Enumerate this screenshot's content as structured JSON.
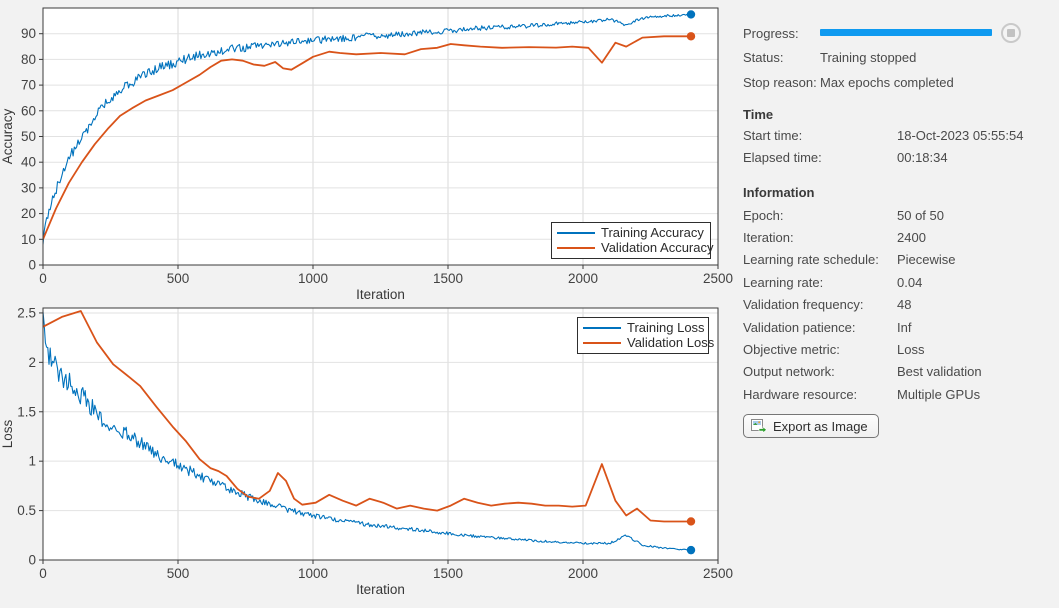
{
  "panel": {
    "progress": {
      "label": "Progress:",
      "percent": 100,
      "bar_color": "#0f9af0"
    },
    "status": {
      "label": "Status:",
      "value": "Training stopped"
    },
    "stop_reason": {
      "label": "Stop reason:",
      "value": "Max epochs completed"
    },
    "time": {
      "title": "Time",
      "rows": [
        {
          "label": "Start time:",
          "value": "18-Oct-2023 05:55:54"
        },
        {
          "label": "Elapsed time:",
          "value": "00:18:34"
        }
      ]
    },
    "information": {
      "title": "Information",
      "rows": [
        {
          "label": "Epoch:",
          "value": "50 of 50"
        },
        {
          "label": "Iteration:",
          "value": "2400"
        },
        {
          "label": "Learning rate schedule:",
          "value": "Piecewise"
        },
        {
          "label": "Learning rate:",
          "value": "0.04"
        },
        {
          "label": "Validation frequency:",
          "value": "48"
        },
        {
          "label": "Validation patience:",
          "value": "Inf"
        },
        {
          "label": "Objective metric:",
          "value": "Loss"
        },
        {
          "label": "Output network:",
          "value": "Best validation"
        },
        {
          "label": "Hardware resource:",
          "value": "Multiple GPUs"
        }
      ]
    },
    "export_button_label": "Export as Image"
  },
  "chart_data": [
    {
      "type": "line",
      "title": "",
      "xlabel": "Iteration",
      "ylabel": "Accuracy",
      "xlim": [
        0,
        2500
      ],
      "ylim": [
        0,
        100
      ],
      "xticks": [
        0,
        500,
        1000,
        1500,
        2000,
        2500
      ],
      "yticks": [
        0,
        10,
        20,
        30,
        40,
        50,
        60,
        70,
        80,
        90
      ],
      "grid": true,
      "legend_position": "bottom-right",
      "series": [
        {
          "name": "Training Accuracy",
          "color": "#0072BD",
          "width": 1.1,
          "noise": 1.6,
          "noise_mode": "fade",
          "end_marker": true,
          "points": [
            [
              0,
              10
            ],
            [
              20,
              21
            ],
            [
              50,
              30
            ],
            [
              90,
              40
            ],
            [
              130,
              48
            ],
            [
              170,
              54
            ],
            [
              210,
              60
            ],
            [
              250,
              65
            ],
            [
              285,
              68
            ],
            [
              330,
              71
            ],
            [
              380,
              74
            ],
            [
              430,
              77
            ],
            [
              500,
              79
            ],
            [
              550,
              81
            ],
            [
              600,
              82
            ],
            [
              650,
              83
            ],
            [
              700,
              84
            ],
            [
              750,
              84.5
            ],
            [
              800,
              85.5
            ],
            [
              850,
              86
            ],
            [
              900,
              86.5
            ],
            [
              950,
              87
            ],
            [
              1000,
              87.5
            ],
            [
              1100,
              88
            ],
            [
              1200,
              89
            ],
            [
              1300,
              89.5
            ],
            [
              1400,
              90.5
            ],
            [
              1500,
              91
            ],
            [
              1600,
              92
            ],
            [
              1700,
              92.5
            ],
            [
              1800,
              93
            ],
            [
              1900,
              94
            ],
            [
              2000,
              94.5
            ],
            [
              2100,
              95.5
            ],
            [
              2160,
              93.5
            ],
            [
              2220,
              96
            ],
            [
              2300,
              97
            ],
            [
              2400,
              97.5
            ]
          ]
        },
        {
          "name": "Validation Accuracy",
          "color": "#D95319",
          "width": 1.8,
          "noise": 0,
          "noise_mode": "none",
          "end_marker": true,
          "points": [
            [
              0,
              10
            ],
            [
              48,
              22
            ],
            [
              96,
              32
            ],
            [
              144,
              40
            ],
            [
              192,
              47
            ],
            [
              240,
              53
            ],
            [
              285,
              58
            ],
            [
              330,
              61
            ],
            [
              380,
              64
            ],
            [
              430,
              66
            ],
            [
              480,
              68
            ],
            [
              530,
              71
            ],
            [
              580,
              74
            ],
            [
              620,
              77
            ],
            [
              660,
              79.5
            ],
            [
              700,
              80
            ],
            [
              740,
              79.5
            ],
            [
              780,
              78
            ],
            [
              820,
              77.5
            ],
            [
              860,
              79
            ],
            [
              890,
              76.5
            ],
            [
              920,
              76
            ],
            [
              960,
              78.5
            ],
            [
              1000,
              81
            ],
            [
              1060,
              83
            ],
            [
              1100,
              82.5
            ],
            [
              1160,
              82
            ],
            [
              1250,
              82.5
            ],
            [
              1340,
              82
            ],
            [
              1400,
              84
            ],
            [
              1460,
              84.5
            ],
            [
              1510,
              86
            ],
            [
              1560,
              85.5
            ],
            [
              1620,
              85
            ],
            [
              1700,
              84.5
            ],
            [
              1800,
              84.8
            ],
            [
              1900,
              84.6
            ],
            [
              1960,
              85
            ],
            [
              2020,
              84.5
            ],
            [
              2070,
              78.7
            ],
            [
              2120,
              86.5
            ],
            [
              2160,
              85
            ],
            [
              2220,
              88.5
            ],
            [
              2300,
              89
            ],
            [
              2400,
              89
            ]
          ]
        }
      ]
    },
    {
      "type": "line",
      "title": "",
      "xlabel": "Iteration",
      "ylabel": "Loss",
      "xlim": [
        0,
        2500
      ],
      "ylim": [
        0,
        2.55
      ],
      "xticks": [
        0,
        500,
        1000,
        1500,
        2000,
        2500
      ],
      "yticks": [
        0,
        0.5,
        1,
        1.5,
        2,
        2.5
      ],
      "grid": true,
      "legend_position": "top-right",
      "series": [
        {
          "name": "Training Loss",
          "color": "#0072BD",
          "width": 1.1,
          "noise": 0.06,
          "noise_mode": "scale",
          "end_marker": true,
          "points": [
            [
              0,
              2.4
            ],
            [
              10,
              2.2
            ],
            [
              25,
              2.05
            ],
            [
              60,
              1.9
            ],
            [
              100,
              1.78
            ],
            [
              160,
              1.62
            ],
            [
              210,
              1.45
            ],
            [
              285,
              1.33
            ],
            [
              340,
              1.22
            ],
            [
              400,
              1.1
            ],
            [
              450,
              1.02
            ],
            [
              500,
              0.96
            ],
            [
              560,
              0.88
            ],
            [
              620,
              0.8
            ],
            [
              680,
              0.73
            ],
            [
              740,
              0.66
            ],
            [
              800,
              0.6
            ],
            [
              860,
              0.55
            ],
            [
              920,
              0.5
            ],
            [
              980,
              0.46
            ],
            [
              1040,
              0.43
            ],
            [
              1100,
              0.4
            ],
            [
              1200,
              0.36
            ],
            [
              1300,
              0.33
            ],
            [
              1400,
              0.3
            ],
            [
              1500,
              0.27
            ],
            [
              1600,
              0.24
            ],
            [
              1700,
              0.22
            ],
            [
              1800,
              0.2
            ],
            [
              1900,
              0.18
            ],
            [
              2000,
              0.17
            ],
            [
              2100,
              0.17
            ],
            [
              2160,
              0.25
            ],
            [
              2220,
              0.15
            ],
            [
              2300,
              0.12
            ],
            [
              2400,
              0.1
            ]
          ]
        },
        {
          "name": "Validation Loss",
          "color": "#D95319",
          "width": 1.8,
          "noise": 0,
          "noise_mode": "none",
          "end_marker": true,
          "points": [
            [
              0,
              2.36
            ],
            [
              70,
              2.46
            ],
            [
              140,
              2.52
            ],
            [
              200,
              2.2
            ],
            [
              260,
              1.98
            ],
            [
              320,
              1.85
            ],
            [
              360,
              1.76
            ],
            [
              420,
              1.55
            ],
            [
              480,
              1.35
            ],
            [
              530,
              1.2
            ],
            [
              580,
              1.02
            ],
            [
              620,
              0.93
            ],
            [
              650,
              0.9
            ],
            [
              680,
              0.85
            ],
            [
              720,
              0.72
            ],
            [
              760,
              0.64
            ],
            [
              800,
              0.62
            ],
            [
              840,
              0.7
            ],
            [
              870,
              0.88
            ],
            [
              900,
              0.8
            ],
            [
              930,
              0.62
            ],
            [
              960,
              0.56
            ],
            [
              1010,
              0.58
            ],
            [
              1060,
              0.66
            ],
            [
              1110,
              0.6
            ],
            [
              1160,
              0.55
            ],
            [
              1210,
              0.62
            ],
            [
              1260,
              0.58
            ],
            [
              1310,
              0.52
            ],
            [
              1360,
              0.55
            ],
            [
              1410,
              0.52
            ],
            [
              1460,
              0.5
            ],
            [
              1510,
              0.55
            ],
            [
              1560,
              0.62
            ],
            [
              1610,
              0.58
            ],
            [
              1660,
              0.55
            ],
            [
              1710,
              0.57
            ],
            [
              1760,
              0.58
            ],
            [
              1810,
              0.57
            ],
            [
              1860,
              0.55
            ],
            [
              1910,
              0.55
            ],
            [
              1960,
              0.54
            ],
            [
              2010,
              0.55
            ],
            [
              2070,
              0.97
            ],
            [
              2120,
              0.6
            ],
            [
              2160,
              0.45
            ],
            [
              2200,
              0.52
            ],
            [
              2250,
              0.4
            ],
            [
              2300,
              0.39
            ],
            [
              2400,
              0.39
            ]
          ]
        }
      ]
    }
  ]
}
